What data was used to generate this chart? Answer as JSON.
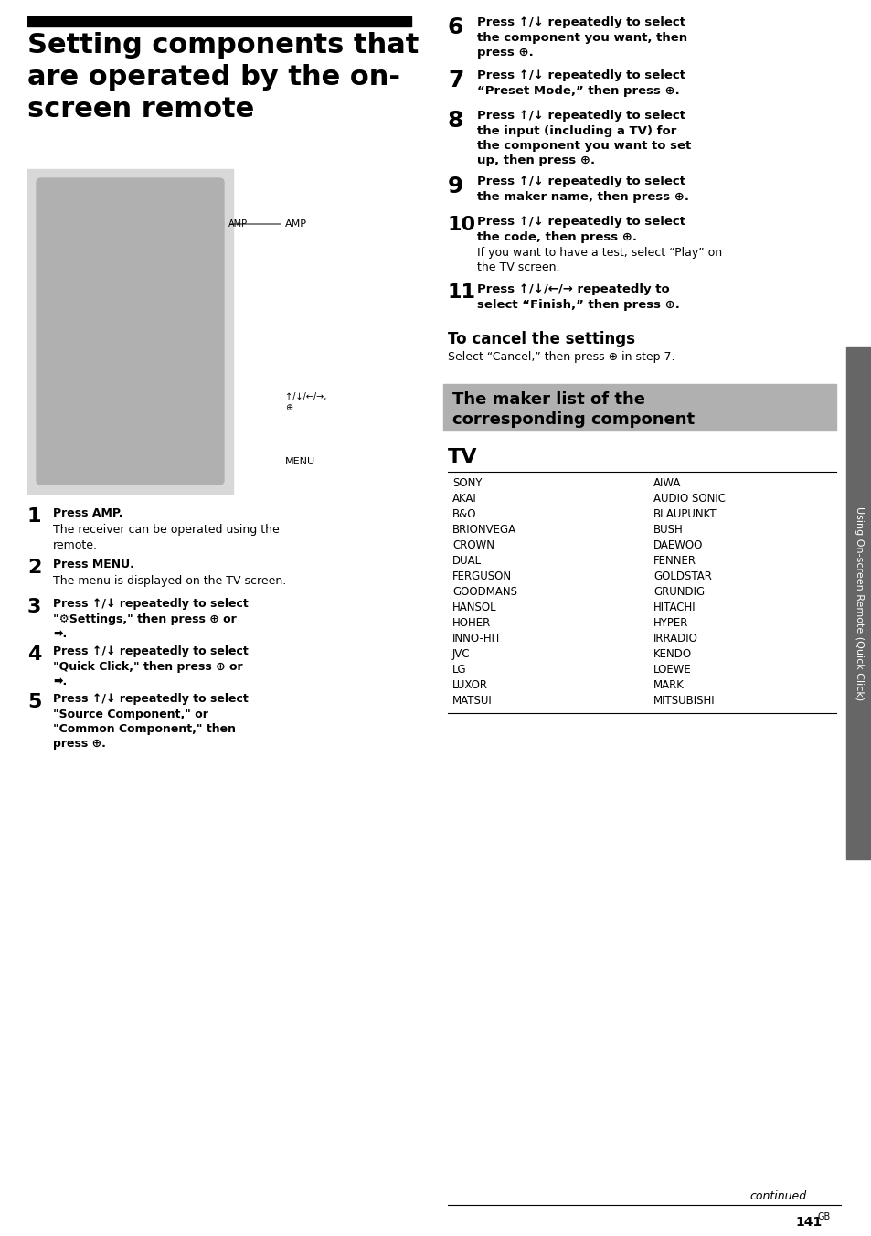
{
  "title": "Setting components that\nare operated by the on-\nscreen remote",
  "title_bar_color": "#000000",
  "background_color": "#ffffff",
  "right_side_tab_color": "#666666",
  "right_side_tab_text": "Using On-screen Remote (Quick Click)",
  "section_header_bg": "#b0b0b0",
  "section_header_text": "The maker list of the\ncorresponding component",
  "left_steps": [
    {
      "num": "1",
      "num_size": "large",
      "bold_text": "Press AMP.",
      "normal_text": "The receiver can be operated using the\nremote."
    },
    {
      "num": "2",
      "num_size": "large",
      "bold_text": "Press MENU.",
      "normal_text": "The menu is displayed on the TV screen."
    },
    {
      "num": "3",
      "num_size": "large",
      "bold_text": "Press ↑/↓ repeatedly to select\n“⚙Settings,” then press ⊕ or\n➡.",
      "normal_text": ""
    },
    {
      "num": "4",
      "num_size": "large",
      "bold_text": "Press ↑/↓ repeatedly to select\n“Quick Click,” then press ⊕ or\n➡.",
      "normal_text": ""
    },
    {
      "num": "5",
      "num_size": "large",
      "bold_text": "Press ↑/↓ repeatedly to select\n“Source Component,” or\n“Common Component,” then\npress ⊕.",
      "normal_text": ""
    }
  ],
  "right_steps": [
    {
      "num": "6",
      "num_size": "large",
      "bold_text": "Press ↑/↓ repeatedly to select\nthe component you want, then\npress ⊕.",
      "normal_text": ""
    },
    {
      "num": "7",
      "num_size": "large",
      "bold_text": "Press ↑/↓ repeatedly to select\n“Preset Mode,” then press ⊕.",
      "normal_text": ""
    },
    {
      "num": "8",
      "num_size": "large",
      "bold_text": "Press ↑/↓ repeatedly to select\nthe input (including a TV) for\nthe component you want to set\nup, then press ⊕.",
      "normal_text": ""
    },
    {
      "num": "9",
      "num_size": "large",
      "bold_text": "Press ↑/↓ repeatedly to select\nthe maker name, then press ⊕.",
      "normal_text": ""
    },
    {
      "num": "10",
      "num_size": "large",
      "bold_text": "Press ↑/↓ repeatedly to select\nthe code, then press ⊕.",
      "normal_text": "If you want to have a test, select “Play” on\nthe TV screen."
    },
    {
      "num": "11",
      "num_size": "large",
      "bold_text": "Press ↑/↓/←/→ repeatedly to\nselect “Finish,” then press ⊕.",
      "normal_text": ""
    }
  ],
  "cancel_heading": "To cancel the settings",
  "cancel_text": "Select “Cancel,” then press ⊕ in step 7.",
  "tv_heading": "TV",
  "tv_col1": [
    "SONY",
    "AKAI",
    "B&O",
    "BRIONVEGA",
    "CROWN",
    "DUAL",
    "FERGUSON",
    "GOODMANS",
    "HANSOL",
    "HOHER",
    "INNO-HIT",
    "JVC",
    "LG",
    "LUXOR",
    "MATSUI"
  ],
  "tv_col2": [
    "AIWA",
    "AUDIO SONIC",
    "BLAUPUNKT",
    "BUSH",
    "DAEWOO",
    "FENNER",
    "GOLDSTAR",
    "GRUNDIG",
    "HITACHI",
    "HYPER",
    "IRRADIO",
    "KENDO",
    "LOEWE",
    "MARK",
    "MITSUBISHI"
  ],
  "continued_text": "continued",
  "page_num": "141",
  "page_suffix": "GB"
}
